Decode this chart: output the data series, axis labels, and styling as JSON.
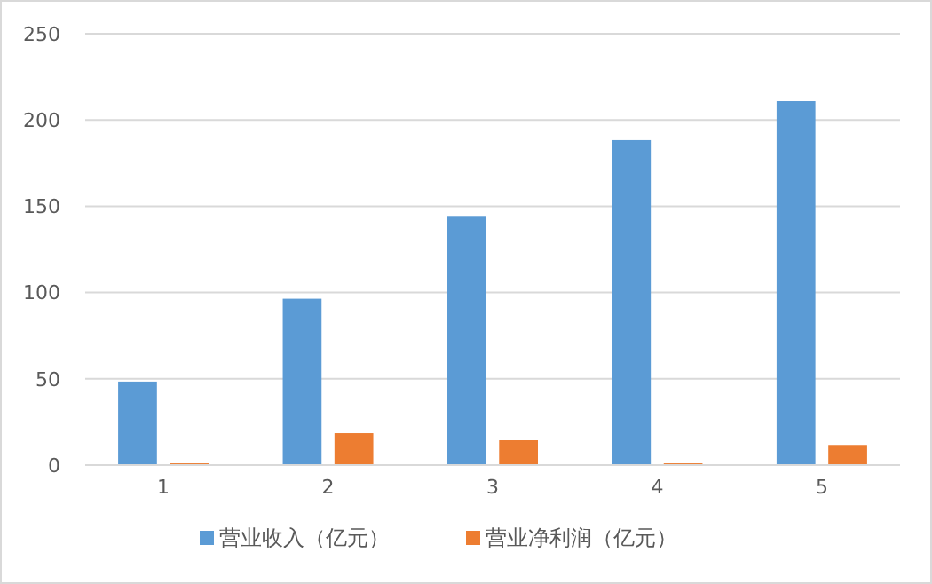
{
  "chart_data": {
    "type": "bar",
    "categories": [
      "1",
      "2",
      "3",
      "4",
      "5"
    ],
    "series": [
      {
        "name": "营业收入（亿元）",
        "color": "#5b9bd5",
        "values": [
          48.4,
          96.4,
          144.4,
          188.3,
          210.9
        ]
      },
      {
        "name": "营业净利润（亿元）",
        "color": "#ed7d31",
        "values": [
          1,
          18.5,
          14.4,
          1,
          11.7
        ]
      }
    ],
    "ylim": [
      0,
      250
    ],
    "yticks": [
      0,
      50,
      100,
      150,
      200,
      250
    ],
    "grid": "y",
    "legend": "bottom"
  }
}
